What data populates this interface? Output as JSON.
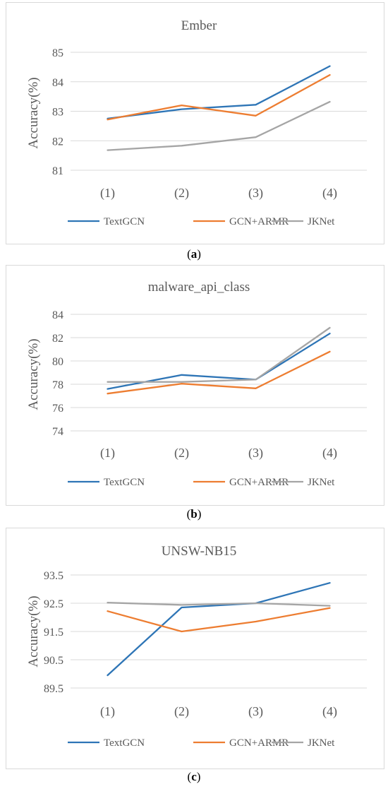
{
  "chart_data": [
    {
      "type": "line",
      "title": "Ember",
      "ylabel": "Accuracy(%)",
      "xlabel": "",
      "categories": [
        "(1)",
        "(2)",
        "(3)",
        "(4)"
      ],
      "yticks": [
        "85",
        "84",
        "83",
        "82",
        "81"
      ],
      "ylim": [
        81,
        85
      ],
      "grid": true,
      "legend": "bottom",
      "caption_letter": "a",
      "series": [
        {
          "name": "TextGCN",
          "color": "#2E75B6",
          "values": [
            82.75,
            83.07,
            83.22,
            84.53
          ]
        },
        {
          "name": "GCN+ARMR",
          "color": "#ED7D31",
          "values": [
            82.72,
            83.2,
            82.85,
            84.23
          ]
        },
        {
          "name": "JKNet",
          "color": "#A5A5A5",
          "values": [
            81.68,
            81.83,
            82.12,
            83.32
          ]
        }
      ]
    },
    {
      "type": "line",
      "title": "malware_api_class",
      "ylabel": "Accuracy(%)",
      "xlabel": "",
      "categories": [
        "(1)",
        "(2)",
        "(3)",
        "(4)"
      ],
      "yticks": [
        "84",
        "82",
        "80",
        "78",
        "76",
        "74"
      ],
      "ylim": [
        74,
        84
      ],
      "grid": true,
      "legend": "bottom",
      "caption_letter": "b",
      "series": [
        {
          "name": "TextGCN",
          "color": "#2E75B6",
          "values": [
            77.6,
            78.8,
            78.4,
            82.35
          ]
        },
        {
          "name": "GCN+ARMR",
          "color": "#ED7D31",
          "values": [
            77.2,
            78.05,
            77.65,
            80.8
          ]
        },
        {
          "name": "JKNet",
          "color": "#A5A5A5",
          "values": [
            78.2,
            78.2,
            78.4,
            82.85
          ]
        }
      ]
    },
    {
      "type": "line",
      "title": "UNSW-NB15",
      "ylabel": "Accuracy(%)",
      "xlabel": "",
      "categories": [
        "(1)",
        "(2)",
        "(3)",
        "(4)"
      ],
      "yticks": [
        "93.5",
        "92.5",
        "91.5",
        "90.5",
        "89.5"
      ],
      "ylim": [
        89.5,
        93.5
      ],
      "grid": true,
      "legend": "bottom",
      "caption_letter": "c",
      "series": [
        {
          "name": "TextGCN",
          "color": "#2E75B6",
          "values": [
            89.95,
            92.35,
            92.5,
            93.22
          ]
        },
        {
          "name": "GCN+ARMR",
          "color": "#ED7D31",
          "values": [
            92.22,
            91.5,
            91.85,
            92.33
          ]
        },
        {
          "name": "JKNet",
          "color": "#A5A5A5",
          "values": [
            92.52,
            92.44,
            92.5,
            92.41
          ]
        }
      ]
    }
  ]
}
